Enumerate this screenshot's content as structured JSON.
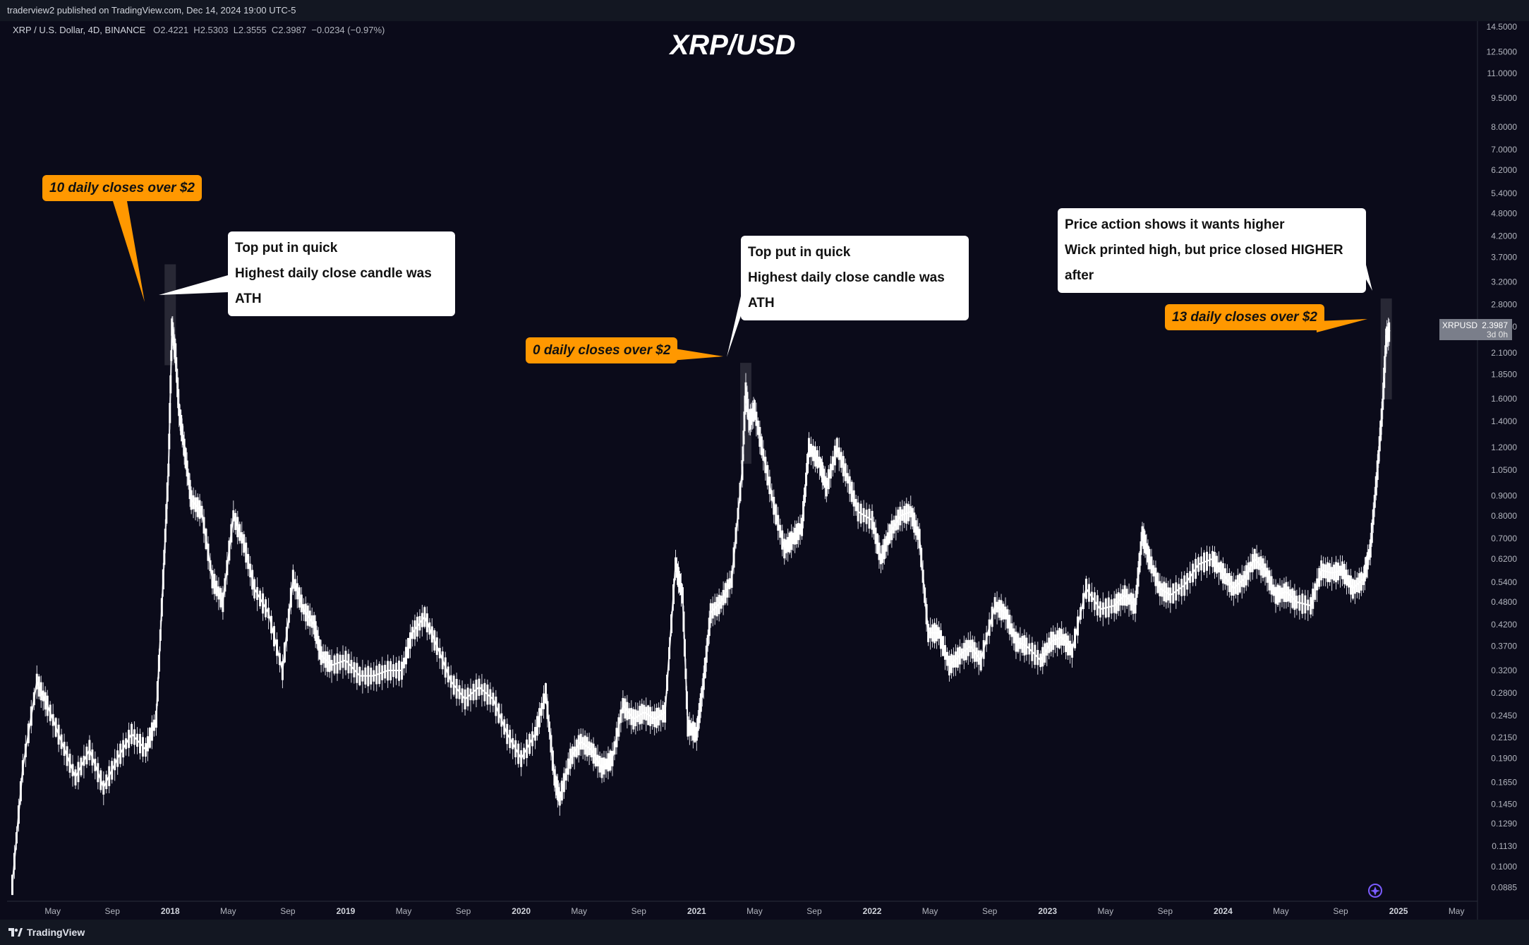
{
  "header": {
    "published": "traderview2 published on TradingView.com, Dec 14, 2024 19:00 UTC-5"
  },
  "symbol_info": {
    "name": "XRP / U.S. Dollar, 4D, BINANCE",
    "open_label": "O",
    "open": "2.4221",
    "high_label": "H",
    "high": "2.5303",
    "low_label": "L",
    "low": "2.3555",
    "close_label": "C",
    "close": "2.3987",
    "change": "−0.0234 (−0.97%)"
  },
  "price_label": {
    "symbol": "XRPUSD",
    "value": "2.3987",
    "countdown": "3d 0h"
  },
  "footer": {
    "brand": "TradingView"
  },
  "annotations": {
    "tag_2018": "10 daily closes over $2",
    "tag_2021": "0 daily closes over $2",
    "tag_2024": "13 daily closes over $2",
    "callout_2018": [
      "Top put in quick",
      "Highest daily close candle was ATH"
    ],
    "callout_2021": [
      "Top put in quick",
      "Highest daily close candle was ATH"
    ],
    "callout_2024": [
      "Price action shows it wants higher",
      "Wick printed high, but price closed HIGHER after"
    ]
  },
  "colors": {
    "background": "#0b0b1a",
    "candle": "#ffffff",
    "tag": "#ff9800",
    "callout": "#ffffff",
    "axis_text": "#b2b5be"
  },
  "chart_data": {
    "type": "line",
    "title": "XRP/USD",
    "xlabel": "",
    "ylabel": "",
    "y_scale": "log",
    "ylim": [
      0.085,
      14.5
    ],
    "y_ticks": [
      "14.5000",
      "12.5000",
      "11.0000",
      "9.5000",
      "8.0000",
      "7.0000",
      "6.2000",
      "5.4000",
      "4.8000",
      "4.2000",
      "3.7000",
      "3.2000",
      "2.8000",
      "2.4500",
      "2.1000",
      "1.8500",
      "1.6000",
      "1.4000",
      "1.2000",
      "1.0500",
      "0.9000",
      "0.8000",
      "0.7000",
      "0.6200",
      "0.5400",
      "0.4800",
      "0.4200",
      "0.3700",
      "0.3200",
      "0.2800",
      "0.2450",
      "0.2150",
      "0.1900",
      "0.1650",
      "0.1450",
      "0.1290",
      "0.1130",
      "0.1000",
      "0.0885"
    ],
    "x_ticks": [
      {
        "label": "May",
        "t": 2017.33,
        "bold": false
      },
      {
        "label": "Sep",
        "t": 2017.67,
        "bold": false
      },
      {
        "label": "2018",
        "t": 2018.0,
        "bold": true
      },
      {
        "label": "May",
        "t": 2018.33,
        "bold": false
      },
      {
        "label": "Sep",
        "t": 2018.67,
        "bold": false
      },
      {
        "label": "2019",
        "t": 2019.0,
        "bold": true
      },
      {
        "label": "May",
        "t": 2019.33,
        "bold": false
      },
      {
        "label": "Sep",
        "t": 2019.67,
        "bold": false
      },
      {
        "label": "2020",
        "t": 2020.0,
        "bold": true
      },
      {
        "label": "May",
        "t": 2020.33,
        "bold": false
      },
      {
        "label": "Sep",
        "t": 2020.67,
        "bold": false
      },
      {
        "label": "2021",
        "t": 2021.0,
        "bold": true
      },
      {
        "label": "May",
        "t": 2021.33,
        "bold": false
      },
      {
        "label": "Sep",
        "t": 2021.67,
        "bold": false
      },
      {
        "label": "2022",
        "t": 2022.0,
        "bold": true
      },
      {
        "label": "May",
        "t": 2022.33,
        "bold": false
      },
      {
        "label": "Sep",
        "t": 2022.67,
        "bold": false
      },
      {
        "label": "2023",
        "t": 2023.0,
        "bold": true
      },
      {
        "label": "May",
        "t": 2023.33,
        "bold": false
      },
      {
        "label": "Sep",
        "t": 2023.67,
        "bold": false
      },
      {
        "label": "2024",
        "t": 2024.0,
        "bold": true
      },
      {
        "label": "May",
        "t": 2024.33,
        "bold": false
      },
      {
        "label": "Sep",
        "t": 2024.67,
        "bold": false
      },
      {
        "label": "2025",
        "t": 2025.0,
        "bold": true
      },
      {
        "label": "May",
        "t": 2025.33,
        "bold": false
      }
    ],
    "series": [
      {
        "values": [
          [
            2017.1,
            0.09
          ],
          [
            2017.16,
            0.18
          ],
          [
            2017.24,
            0.3
          ],
          [
            2017.3,
            0.26
          ],
          [
            2017.38,
            0.21
          ],
          [
            2017.46,
            0.17
          ],
          [
            2017.54,
            0.2
          ],
          [
            2017.62,
            0.16
          ],
          [
            2017.7,
            0.19
          ],
          [
            2017.78,
            0.22
          ],
          [
            2017.86,
            0.2
          ],
          [
            2017.92,
            0.24
          ],
          [
            2017.96,
            0.55
          ],
          [
            2017.99,
            1.05
          ],
          [
            2018.01,
            2.45
          ],
          [
            2018.03,
            2.1
          ],
          [
            2018.05,
            1.5
          ],
          [
            2018.08,
            1.2
          ],
          [
            2018.12,
            0.88
          ],
          [
            2018.18,
            0.82
          ],
          [
            2018.24,
            0.55
          ],
          [
            2018.3,
            0.48
          ],
          [
            2018.36,
            0.8
          ],
          [
            2018.42,
            0.68
          ],
          [
            2018.48,
            0.52
          ],
          [
            2018.56,
            0.45
          ],
          [
            2018.64,
            0.32
          ],
          [
            2018.7,
            0.55
          ],
          [
            2018.76,
            0.46
          ],
          [
            2018.82,
            0.42
          ],
          [
            2018.86,
            0.35
          ],
          [
            2018.92,
            0.33
          ],
          [
            2019.0,
            0.34
          ],
          [
            2019.08,
            0.31
          ],
          [
            2019.16,
            0.31
          ],
          [
            2019.24,
            0.32
          ],
          [
            2019.32,
            0.32
          ],
          [
            2019.38,
            0.4
          ],
          [
            2019.45,
            0.44
          ],
          [
            2019.52,
            0.37
          ],
          [
            2019.6,
            0.3
          ],
          [
            2019.68,
            0.27
          ],
          [
            2019.76,
            0.29
          ],
          [
            2019.84,
            0.27
          ],
          [
            2019.92,
            0.22
          ],
          [
            2020.0,
            0.19
          ],
          [
            2020.08,
            0.22
          ],
          [
            2020.14,
            0.28
          ],
          [
            2020.19,
            0.17
          ],
          [
            2020.22,
            0.15
          ],
          [
            2020.28,
            0.19
          ],
          [
            2020.34,
            0.21
          ],
          [
            2020.4,
            0.2
          ],
          [
            2020.46,
            0.18
          ],
          [
            2020.52,
            0.19
          ],
          [
            2020.58,
            0.26
          ],
          [
            2020.64,
            0.24
          ],
          [
            2020.7,
            0.25
          ],
          [
            2020.76,
            0.24
          ],
          [
            2020.82,
            0.25
          ],
          [
            2020.88,
            0.6
          ],
          [
            2020.92,
            0.5
          ],
          [
            2020.95,
            0.23
          ],
          [
            2021.0,
            0.22
          ],
          [
            2021.04,
            0.3
          ],
          [
            2021.08,
            0.45
          ],
          [
            2021.14,
            0.48
          ],
          [
            2021.2,
            0.55
          ],
          [
            2021.26,
            1.05
          ],
          [
            2021.28,
            1.7
          ],
          [
            2021.3,
            1.4
          ],
          [
            2021.33,
            1.5
          ],
          [
            2021.38,
            1.15
          ],
          [
            2021.44,
            0.85
          ],
          [
            2021.5,
            0.66
          ],
          [
            2021.55,
            0.7
          ],
          [
            2021.6,
            0.75
          ],
          [
            2021.64,
            1.2
          ],
          [
            2021.7,
            1.1
          ],
          [
            2021.74,
            0.95
          ],
          [
            2021.8,
            1.2
          ],
          [
            2021.86,
            1.0
          ],
          [
            2021.92,
            0.82
          ],
          [
            2022.0,
            0.78
          ],
          [
            2022.05,
            0.62
          ],
          [
            2022.1,
            0.72
          ],
          [
            2022.16,
            0.8
          ],
          [
            2022.22,
            0.82
          ],
          [
            2022.27,
            0.7
          ],
          [
            2022.32,
            0.4
          ],
          [
            2022.38,
            0.4
          ],
          [
            2022.44,
            0.33
          ],
          [
            2022.5,
            0.35
          ],
          [
            2022.56,
            0.37
          ],
          [
            2022.62,
            0.34
          ],
          [
            2022.7,
            0.47
          ],
          [
            2022.76,
            0.45
          ],
          [
            2022.82,
            0.38
          ],
          [
            2022.88,
            0.37
          ],
          [
            2022.96,
            0.34
          ],
          [
            2023.02,
            0.38
          ],
          [
            2023.08,
            0.39
          ],
          [
            2023.14,
            0.36
          ],
          [
            2023.22,
            0.52
          ],
          [
            2023.3,
            0.46
          ],
          [
            2023.38,
            0.47
          ],
          [
            2023.44,
            0.5
          ],
          [
            2023.5,
            0.47
          ],
          [
            2023.54,
            0.72
          ],
          [
            2023.58,
            0.62
          ],
          [
            2023.64,
            0.52
          ],
          [
            2023.7,
            0.5
          ],
          [
            2023.78,
            0.53
          ],
          [
            2023.86,
            0.6
          ],
          [
            2023.94,
            0.62
          ],
          [
            2024.0,
            0.57
          ],
          [
            2024.06,
            0.52
          ],
          [
            2024.12,
            0.55
          ],
          [
            2024.18,
            0.62
          ],
          [
            2024.24,
            0.58
          ],
          [
            2024.3,
            0.5
          ],
          [
            2024.36,
            0.51
          ],
          [
            2024.42,
            0.48
          ],
          [
            2024.5,
            0.47
          ],
          [
            2024.56,
            0.58
          ],
          [
            2024.62,
            0.57
          ],
          [
            2024.68,
            0.58
          ],
          [
            2024.74,
            0.52
          ],
          [
            2024.8,
            0.55
          ],
          [
            2024.84,
            0.66
          ],
          [
            2024.88,
            1.05
          ],
          [
            2024.91,
            1.55
          ],
          [
            2024.93,
            2.3
          ],
          [
            2024.95,
            2.4
          ]
        ]
      }
    ]
  }
}
